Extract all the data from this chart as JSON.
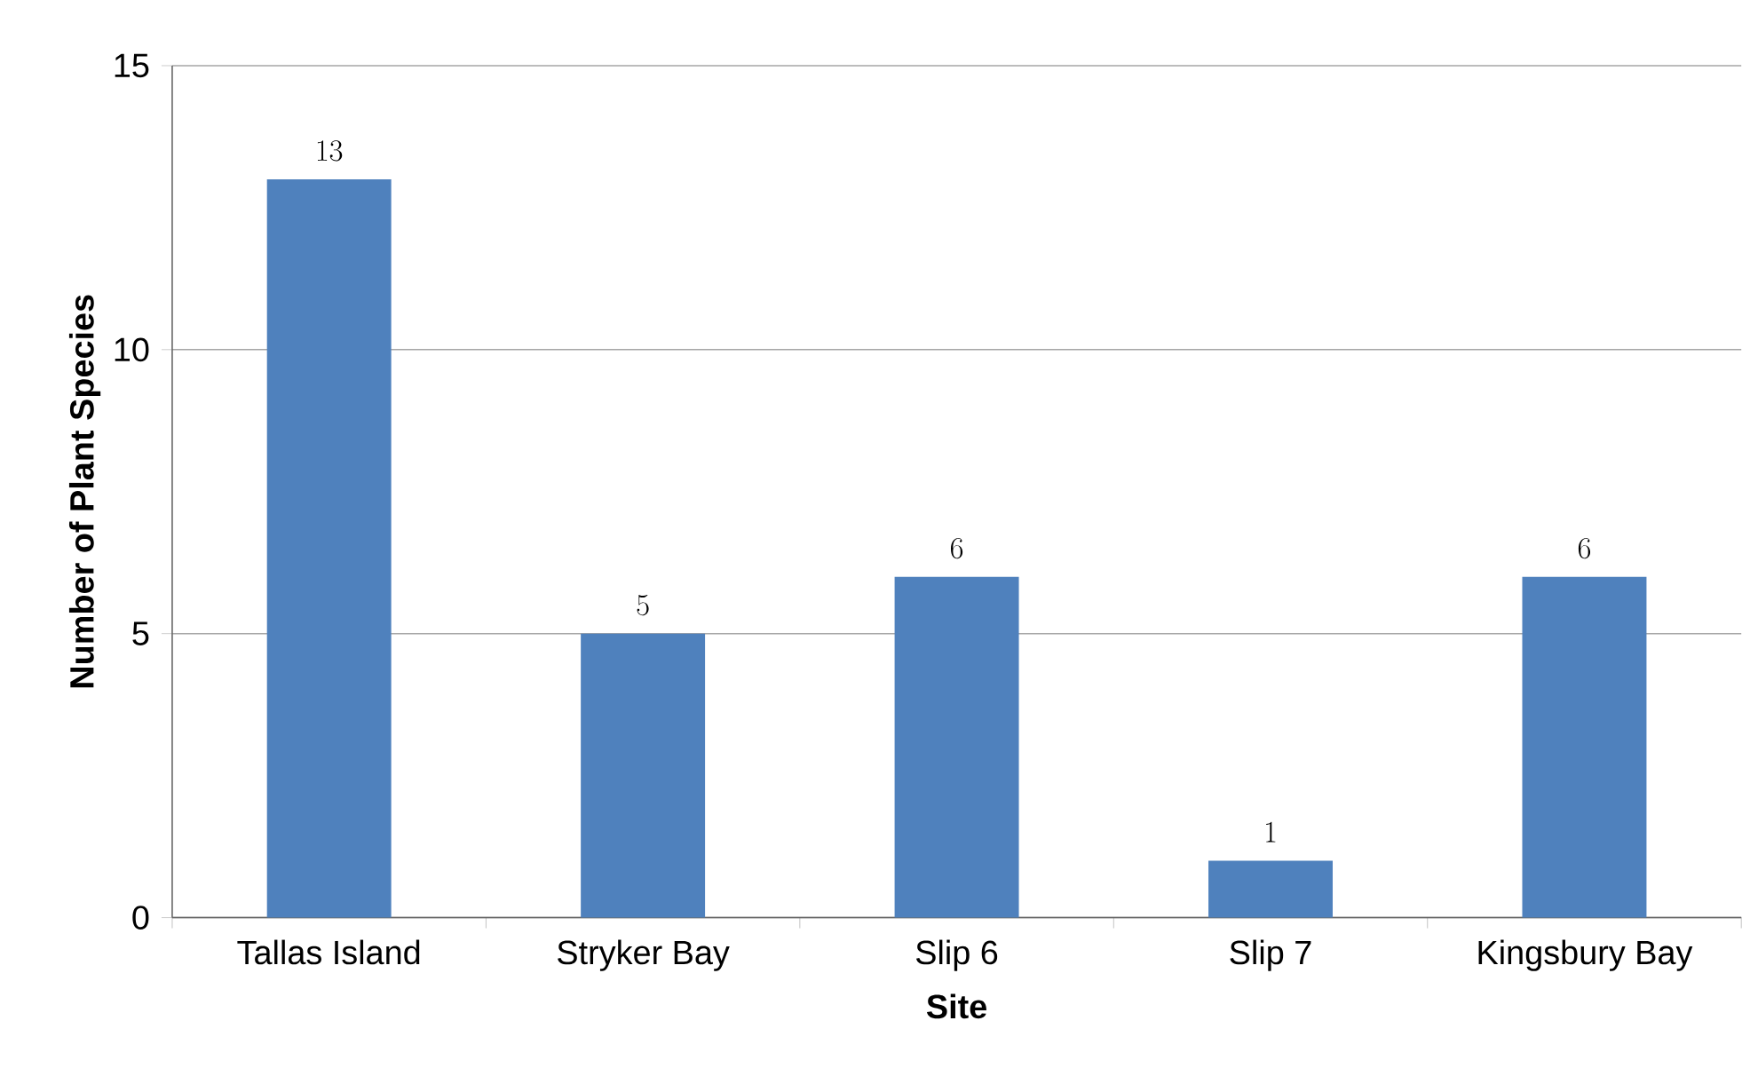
{
  "chart_data": {
    "type": "bar",
    "xlabel": "Site",
    "ylabel": "Number of Plant Species",
    "categories": [
      "Tallas Island",
      "Stryker Bay",
      "Slip 6",
      "Slip 7",
      "Kingsbury Bay"
    ],
    "values": [
      13,
      5,
      6,
      1,
      6
    ],
    "color": "#4f81bd",
    "ylim": [
      0,
      15
    ],
    "yticks": [
      0,
      5,
      10,
      15
    ],
    "grid": "y",
    "data_labels": true
  }
}
